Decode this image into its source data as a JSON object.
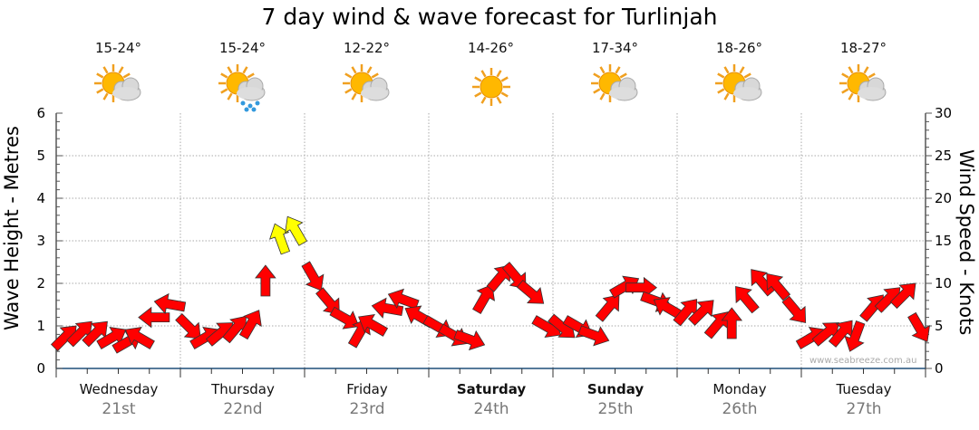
{
  "chart_data": {
    "type": "scatter",
    "title": "7 day wind & wave forecast for Turlinjah",
    "ylabel_left": "Wave Height - Metres",
    "ylabel_right": "Wind Speed - Knots",
    "ylim_left": [
      0,
      6
    ],
    "ylim_right": [
      0,
      30
    ],
    "yticks_left": [
      "0",
      "1",
      "2",
      "3",
      "4",
      "5",
      "6"
    ],
    "yticks_right": [
      "0",
      "5",
      "10",
      "15",
      "20",
      "25",
      "30"
    ],
    "grid": true,
    "days": [
      {
        "name": "Wednesday",
        "date": "21st",
        "temp": "15-24°",
        "icon": "partly-cloudy",
        "bold": false
      },
      {
        "name": "Thursday",
        "date": "22nd",
        "temp": "15-24°",
        "icon": "showers",
        "bold": false
      },
      {
        "name": "Friday",
        "date": "23rd",
        "temp": "12-22°",
        "icon": "partly-cloudy",
        "bold": false
      },
      {
        "name": "Saturday",
        "date": "24th",
        "temp": "14-26°",
        "icon": "sunny",
        "bold": true
      },
      {
        "name": "Sunday",
        "date": "25th",
        "temp": "17-34°",
        "icon": "partly-cloudy",
        "bold": true
      },
      {
        "name": "Monday",
        "date": "26th",
        "temp": "18-26°",
        "icon": "partly-cloudy",
        "bold": false
      },
      {
        "name": "Tuesday",
        "date": "27th",
        "temp": "18-27°",
        "icon": "partly-cloudy",
        "bold": false
      }
    ],
    "wind_speed_knots": [
      3.5,
      4,
      4,
      3.5,
      3,
      3.5,
      6,
      7.5,
      5,
      3.5,
      4,
      4.5,
      5,
      10,
      15,
      16,
      11,
      8,
      6,
      4,
      5,
      7,
      8,
      6,
      5,
      4,
      3.5,
      8,
      10.5,
      11,
      9,
      5,
      5,
      5,
      4,
      7,
      9.5,
      9.5,
      8,
      7,
      6.5,
      6.5,
      5,
      5,
      8,
      10,
      9.5,
      7,
      3.5,
      4,
      4,
      4,
      7,
      8,
      8.5,
      5
    ],
    "wind_arrow_direction_deg": [
      45,
      45,
      45,
      60,
      60,
      300,
      270,
      280,
      135,
      60,
      50,
      40,
      30,
      0,
      340,
      330,
      150,
      140,
      120,
      30,
      300,
      280,
      290,
      300,
      120,
      120,
      110,
      30,
      40,
      140,
      130,
      120,
      130,
      120,
      110,
      40,
      60,
      90,
      110,
      300,
      40,
      45,
      40,
      0,
      320,
      320,
      320,
      140,
      60,
      50,
      40,
      200,
      40,
      45,
      45,
      150
    ],
    "strong_wind_threshold_knots": 12,
    "colors": {
      "normal": "#ff0000",
      "strong": "#ffff00",
      "axis": "#1f4e79"
    }
  },
  "watermark": "www.seabreeze.com.au"
}
